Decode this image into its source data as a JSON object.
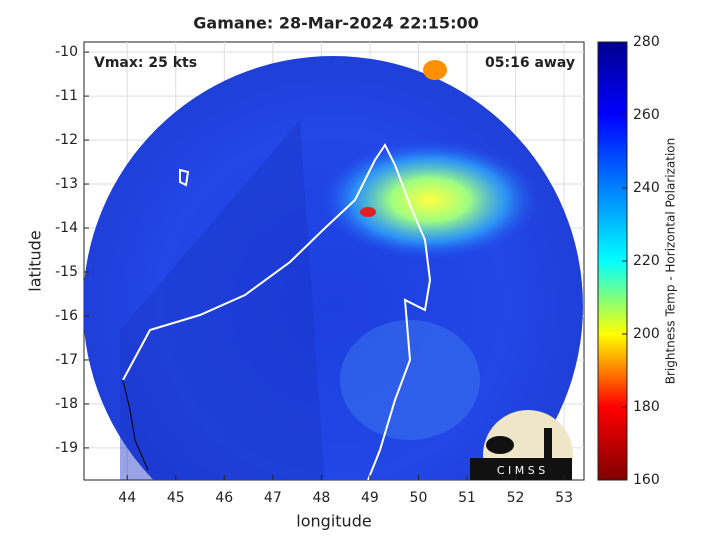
{
  "chart_data": {
    "type": "map",
    "title": "Gamane: 28-Mar-2024 22:15:00",
    "annotations": [
      "Vmax: 25 kts",
      "05:16 away"
    ],
    "x_label": "longitude",
    "y_label": "latitude",
    "xlim": [
      43.11,
      53.41
    ],
    "xticks": [
      44,
      45,
      46,
      47,
      48,
      49,
      50,
      51,
      52,
      53
    ],
    "ylim": [
      -19.73,
      -9.77
    ],
    "yticks": [
      -10,
      -11,
      -12,
      -13,
      -14,
      -15,
      -16,
      -17,
      -18,
      -19
    ],
    "grid": true,
    "colorbar": {
      "label": "Brightness Temp - Horizontal Polarization",
      "lim": [
        160,
        280
      ],
      "ticks": [
        160,
        180,
        200,
        220,
        240,
        260,
        280
      ],
      "colors": [
        "#800000",
        "#ff0000",
        "#ffff00",
        "#00ffff",
        "#0080ff",
        "#0000ff",
        "#00008f"
      ]
    },
    "logo": "C I M S S"
  }
}
